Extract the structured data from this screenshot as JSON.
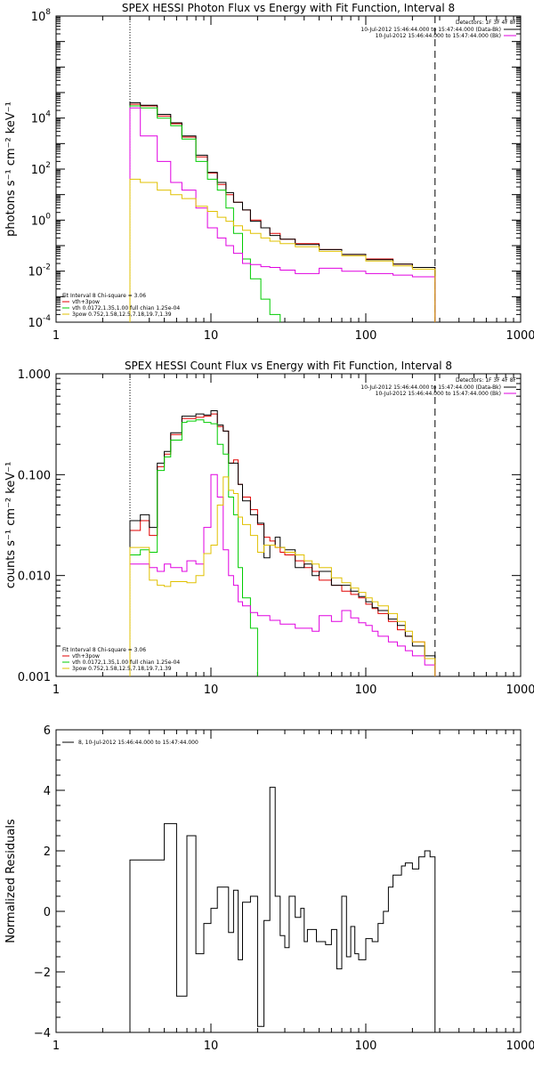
{
  "chart_data": [
    {
      "type": "line",
      "title": "SPEX HESSI Photon Flux vs Energy with Fit Function, Interval 8",
      "ylabel": "photons s⁻¹ cm⁻² keV⁻¹",
      "xlabel": "",
      "xscale": "log",
      "yscale": "log",
      "xlim": [
        1,
        1000
      ],
      "ylim": [
        0.0001,
        100000000
      ],
      "x_ticks": [
        "1",
        "10",
        "100",
        "1000"
      ],
      "y_ticks": [
        {
          "v": 0.0001,
          "b": "10",
          "e": "-4"
        },
        {
          "v": 0.01,
          "b": "10",
          "e": "-2"
        },
        {
          "v": 1,
          "b": "10",
          "e": "0"
        },
        {
          "v": 100,
          "b": "10",
          "e": "2"
        },
        {
          "v": 10000,
          "b": "10",
          "e": "4"
        },
        {
          "v": 100000000,
          "b": "10",
          "e": "8"
        }
      ],
      "detectors": "Detectors: 1F 3F 4F 8F",
      "legend_right": [
        {
          "label": "10-Jul-2012 15:46:44.000 to 15:47:44.000 (Data-Bk)",
          "color": "#000000"
        },
        {
          "label": "10-Jul-2012 15:46:44.000 to 15:47:44.000 (Bk)",
          "color": "#e000e0"
        }
      ],
      "fit_header": "Fit Interval 8   Chi-square = 3.06",
      "fit_legend": [
        {
          "label": "vth+3pow",
          "color": "#e00000"
        },
        {
          "label": "vth 0.0172,1.35,1.00  full chian 1.25e-04",
          "color": "#00cc00"
        },
        {
          "label": "3pow 0.752,1.58,12.5,7.18,19.7,1.39",
          "color": "#e0c000"
        }
      ],
      "vline_dotted": 3,
      "vline_dashed": 280,
      "series": [
        {
          "color": "#e00000",
          "x": [
            3,
            3.5,
            4.5,
            5.5,
            6.5,
            8,
            9.5,
            11,
            12.5,
            14,
            16,
            18,
            21,
            24,
            28,
            35,
            50,
            70,
            100,
            150,
            200,
            280
          ],
          "y": [
            35000,
            30000,
            12000,
            6000,
            1800,
            300,
            70,
            25,
            10,
            5,
            2.5,
            1,
            0.5,
            0.3,
            0.18,
            0.12,
            0.07,
            0.045,
            0.03,
            0.019,
            0.014,
            0.012
          ]
        },
        {
          "color": "#000000",
          "x": [
            3,
            3.5,
            4.5,
            5.5,
            6.5,
            8,
            9.5,
            11,
            12.5,
            14,
            16,
            18,
            21,
            24,
            28,
            35,
            50,
            70,
            100,
            150,
            200,
            280
          ],
          "y": [
            40000,
            32000,
            14000,
            6500,
            2000,
            350,
            75,
            30,
            12,
            5,
            2.5,
            0.9,
            0.5,
            0.25,
            0.18,
            0.11,
            0.07,
            0.045,
            0.028,
            0.019,
            0.014,
            0.012
          ]
        },
        {
          "color": "#00cc00",
          "x": [
            3,
            3.5,
            4.5,
            5.5,
            6.5,
            8,
            9.5,
            11,
            12.5,
            14,
            16,
            18,
            21,
            24,
            28
          ],
          "y": [
            30000,
            25000,
            10000,
            5000,
            1500,
            200,
            40,
            15,
            3,
            0.3,
            0.03,
            0.005,
            0.0008,
            0.0002,
            0.0001
          ]
        },
        {
          "color": "#e000e0",
          "x": [
            3,
            3.5,
            4.5,
            5.5,
            6.5,
            8,
            9.5,
            11,
            12.5,
            14,
            16,
            18,
            21,
            24,
            28,
            35,
            50,
            70,
            100,
            150,
            200,
            280
          ],
          "y": [
            25000,
            2000,
            200,
            30,
            15,
            3,
            0.5,
            0.2,
            0.1,
            0.05,
            0.02,
            0.018,
            0.015,
            0.014,
            0.011,
            0.008,
            0.013,
            0.01,
            0.008,
            0.007,
            0.006,
            0.005
          ]
        },
        {
          "color": "#e0c000",
          "x": [
            3,
            3.5,
            4.5,
            5.5,
            6.5,
            8,
            9.5,
            11,
            12.5,
            14,
            16,
            18,
            21,
            24,
            28,
            35,
            50,
            70,
            100,
            150,
            200,
            280
          ],
          "y": [
            40,
            30,
            15,
            10,
            7,
            3.5,
            2.2,
            1.3,
            0.9,
            0.6,
            0.4,
            0.3,
            0.2,
            0.15,
            0.12,
            0.09,
            0.06,
            0.04,
            0.025,
            0.016,
            0.012,
            0.0095
          ]
        }
      ]
    },
    {
      "type": "line",
      "title": "SPEX HESSI Count Flux vs Energy with Fit Function, Interval 8",
      "ylabel": "counts s⁻¹ cm⁻² keV⁻¹",
      "xlabel": "",
      "xscale": "log",
      "yscale": "log",
      "xlim": [
        1,
        1000
      ],
      "ylim": [
        0.001,
        1
      ],
      "x_ticks": [
        "1",
        "10",
        "100",
        "1000"
      ],
      "y_ticks": [
        {
          "v": 0.001,
          "t": "0.001"
        },
        {
          "v": 0.01,
          "t": "0.010"
        },
        {
          "v": 0.1,
          "t": "0.100"
        },
        {
          "v": 1,
          "t": "1.000"
        }
      ],
      "detectors": "Detectors: 1F 3F 4F 8F",
      "legend_right": [
        {
          "label": "10-Jul-2012 15:46:44.000 to 15:47:44.000 (Data-Bk)",
          "color": "#000000"
        },
        {
          "label": "10-Jul-2012 15:46:44.000 to 15:47:44.000 (Bk)",
          "color": "#e000e0"
        }
      ],
      "fit_header": "Fit Interval 8   Chi-square = 3.06",
      "fit_legend": [
        {
          "label": "vth+3pow",
          "color": "#e00000"
        },
        {
          "label": "vth 0.0172,1.35,1.00  full chian 1.25e-04",
          "color": "#00cc00"
        },
        {
          "label": "3pow 0.752,1.58,12.5,7.18,19.7,1.39",
          "color": "#e0c000"
        }
      ],
      "vline_dotted": 3,
      "vline_dashed": 280,
      "series": [
        {
          "color": "#e00000",
          "x": [
            3,
            3.5,
            4,
            4.5,
            5,
            5.5,
            6.5,
            7,
            8,
            9,
            10,
            11,
            12,
            13,
            14,
            15,
            16,
            18,
            20,
            22,
            24,
            26,
            28,
            30,
            35,
            40,
            45,
            50,
            60,
            70,
            80,
            90,
            100,
            110,
            120,
            140,
            160,
            180,
            200,
            240,
            280
          ],
          "y": [
            0.028,
            0.035,
            0.025,
            0.12,
            0.16,
            0.25,
            0.36,
            0.36,
            0.37,
            0.38,
            0.4,
            0.3,
            0.27,
            0.13,
            0.14,
            0.08,
            0.06,
            0.045,
            0.032,
            0.024,
            0.022,
            0.019,
            0.017,
            0.016,
            0.014,
            0.012,
            0.011,
            0.009,
            0.008,
            0.007,
            0.0065,
            0.006,
            0.0052,
            0.0047,
            0.0042,
            0.0035,
            0.0029,
            0.0025,
            0.0022,
            0.0015,
            0.0012
          ]
        },
        {
          "color": "#000000",
          "x": [
            3,
            3.5,
            4,
            4.5,
            5,
            5.5,
            6.5,
            7,
            8,
            9,
            10,
            11,
            12,
            13,
            14,
            15,
            16,
            18,
            20,
            22,
            24,
            26,
            28,
            30,
            35,
            40,
            45,
            50,
            60,
            70,
            80,
            90,
            100,
            110,
            120,
            140,
            160,
            180,
            200,
            240,
            280
          ],
          "y": [
            0.035,
            0.04,
            0.03,
            0.13,
            0.17,
            0.26,
            0.38,
            0.38,
            0.4,
            0.39,
            0.43,
            0.31,
            0.27,
            0.13,
            0.13,
            0.08,
            0.055,
            0.04,
            0.033,
            0.015,
            0.02,
            0.024,
            0.019,
            0.018,
            0.012,
            0.013,
            0.01,
            0.011,
            0.008,
            0.008,
            0.007,
            0.0062,
            0.0055,
            0.0048,
            0.0045,
            0.0037,
            0.0032,
            0.0025,
            0.002,
            0.0016,
            0.0011
          ]
        },
        {
          "color": "#00cc00",
          "x": [
            3,
            3.5,
            4,
            4.5,
            5,
            5.5,
            6.5,
            7,
            8,
            9,
            10,
            11,
            12,
            13,
            14,
            15,
            16,
            18,
            20
          ],
          "y": [
            0.016,
            0.018,
            0.017,
            0.11,
            0.15,
            0.22,
            0.33,
            0.34,
            0.35,
            0.33,
            0.32,
            0.2,
            0.16,
            0.06,
            0.04,
            0.012,
            0.006,
            0.003,
            0.0008
          ]
        },
        {
          "color": "#e000e0",
          "x": [
            3,
            3.5,
            4,
            4.5,
            5,
            5.5,
            6.5,
            7,
            8,
            9,
            10,
            11,
            12,
            13,
            14,
            15,
            16,
            18,
            20,
            22,
            24,
            26,
            28,
            30,
            35,
            40,
            45,
            50,
            60,
            70,
            80,
            90,
            100,
            110,
            120,
            140,
            160,
            180,
            200,
            240,
            280
          ],
          "y": [
            0.013,
            0.013,
            0.012,
            0.011,
            0.013,
            0.012,
            0.011,
            0.014,
            0.013,
            0.03,
            0.1,
            0.06,
            0.018,
            0.01,
            0.008,
            0.0055,
            0.005,
            0.0043,
            0.004,
            0.004,
            0.0036,
            0.0036,
            0.0033,
            0.0033,
            0.003,
            0.003,
            0.0028,
            0.004,
            0.0035,
            0.0045,
            0.0038,
            0.0034,
            0.0032,
            0.0028,
            0.0025,
            0.0022,
            0.002,
            0.0018,
            0.0016,
            0.0013,
            0.0011
          ]
        },
        {
          "color": "#e0c000",
          "x": [
            3,
            3.5,
            4,
            4.5,
            5,
            5.5,
            6.5,
            7,
            8,
            9,
            10,
            11,
            12,
            13,
            14,
            15,
            16,
            18,
            20,
            22,
            24,
            26,
            28,
            30,
            35,
            40,
            45,
            50,
            60,
            70,
            80,
            90,
            100,
            110,
            120,
            140,
            160,
            180,
            200,
            240,
            280
          ],
          "y": [
            0.019,
            0.019,
            0.009,
            0.008,
            0.0078,
            0.0087,
            0.0087,
            0.0085,
            0.01,
            0.0165,
            0.02,
            0.05,
            0.095,
            0.07,
            0.065,
            0.038,
            0.032,
            0.025,
            0.017,
            0.02,
            0.02,
            0.019,
            0.019,
            0.017,
            0.016,
            0.014,
            0.013,
            0.012,
            0.0095,
            0.0085,
            0.0075,
            0.0068,
            0.006,
            0.0055,
            0.005,
            0.0042,
            0.0035,
            0.0028,
            0.0022,
            0.0015,
            0.0012
          ]
        }
      ]
    },
    {
      "type": "line",
      "title": "",
      "ylabel": "Normalized Residuals",
      "xlabel": "",
      "xscale": "log",
      "yscale": "linear",
      "xlim": [
        1,
        1000
      ],
      "ylim": [
        -4,
        6
      ],
      "x_ticks": [
        "1",
        "10",
        "100",
        "1000"
      ],
      "y_ticks": [
        {
          "v": -4,
          "t": "−4"
        },
        {
          "v": -2,
          "t": "−2"
        },
        {
          "v": 0,
          "t": "0"
        },
        {
          "v": 2,
          "t": "2"
        },
        {
          "v": 4,
          "t": "4"
        },
        {
          "v": 6,
          "t": "6"
        }
      ],
      "legend_text": "8, 10-Jul-2012 15:46:44.000 to 15:47:44.000",
      "series": [
        {
          "color": "#000000",
          "x": [
            3,
            4,
            5,
            6,
            7,
            8,
            9,
            10,
            11,
            12,
            13,
            14,
            15,
            16,
            18,
            20,
            22,
            24,
            26,
            28,
            30,
            32,
            35,
            38,
            40,
            42,
            45,
            48,
            50,
            55,
            60,
            65,
            70,
            75,
            80,
            85,
            90,
            100,
            110,
            120,
            130,
            140,
            150,
            160,
            170,
            180,
            200,
            220,
            240,
            260,
            280
          ],
          "y": [
            1.7,
            1.7,
            2.9,
            -2.8,
            2.5,
            -1.4,
            -0.4,
            0.1,
            0.8,
            0.8,
            -0.7,
            0.7,
            -1.6,
            0.3,
            0.5,
            -3.8,
            -0.3,
            4.1,
            0.5,
            -0.8,
            -1.2,
            0.5,
            -0.2,
            0.1,
            -1.0,
            -0.6,
            -0.6,
            -1.0,
            -1.0,
            -1.1,
            -0.6,
            -1.9,
            0.5,
            -1.5,
            -0.5,
            -1.4,
            -1.6,
            -0.9,
            -1.0,
            -0.4,
            0.0,
            0.8,
            1.2,
            1.2,
            1.5,
            1.6,
            1.4,
            1.8,
            2.0,
            1.8,
            1.8
          ]
        }
      ]
    }
  ]
}
